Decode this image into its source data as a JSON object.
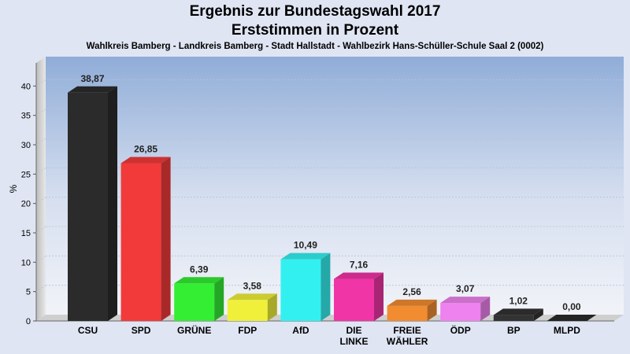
{
  "chart_data": {
    "type": "bar",
    "title": "Ergebnis zur Bundestagswahl 2017",
    "title_line2": "Erststimmen in Prozent",
    "subtitle": "Wahlkreis Bamberg - Landkreis Bamberg - Stadt Hallstadt - Wahlbezirk Hans-Schüller-Schule Saal 2 (0002)",
    "ylabel": "%",
    "xlabel": "",
    "ylim": [
      0,
      45
    ],
    "yticks": [
      0,
      5,
      10,
      15,
      20,
      25,
      30,
      35,
      40
    ],
    "grid": true,
    "categories": [
      "CSU",
      "SPD",
      "GRÜNE",
      "FDP",
      "AfD",
      "DIE LINKE",
      "FREIE WÄHLER",
      "ÖDP",
      "BP",
      "MLPD"
    ],
    "category_lines": [
      [
        "CSU"
      ],
      [
        "SPD"
      ],
      [
        "GRÜNE"
      ],
      [
        "FDP"
      ],
      [
        "AfD"
      ],
      [
        "DIE",
        "LINKE"
      ],
      [
        "FREIE",
        "WÄHLER"
      ],
      [
        "ÖDP"
      ],
      [
        "BP"
      ],
      [
        "MLPD"
      ]
    ],
    "values": [
      38.87,
      26.85,
      6.39,
      3.58,
      10.49,
      7.16,
      2.56,
      3.07,
      1.02,
      0.0
    ],
    "value_labels": [
      "38,87",
      "26,85",
      "6,39",
      "3,58",
      "10,49",
      "7,16",
      "2,56",
      "3,07",
      "1,02",
      "0,00"
    ],
    "colors": [
      "#2b2b2b",
      "#f23a3a",
      "#33ee33",
      "#f0f03a",
      "#33f0f0",
      "#f035a6",
      "#f28c30",
      "#ee82ee",
      "#333333",
      "#2a2a2a"
    ]
  }
}
